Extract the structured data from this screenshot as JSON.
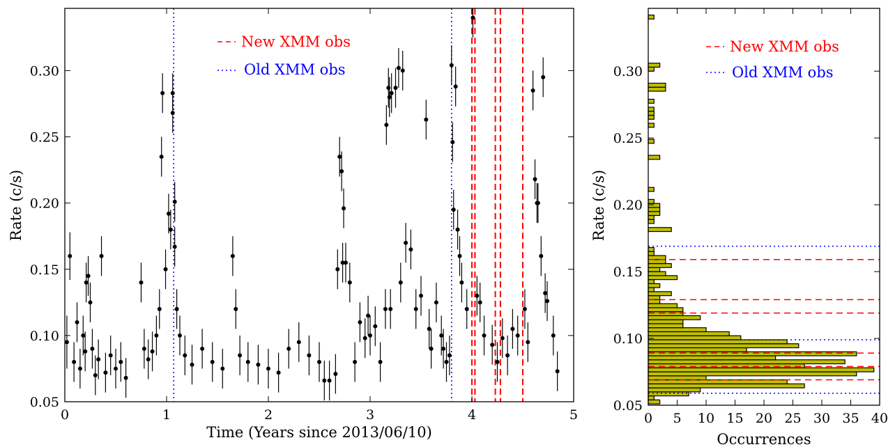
{
  "chart_data": [
    {
      "type": "scatter",
      "xlabel": "Time (Years since 2013/06/10)",
      "ylabel": "Rate (c/s)",
      "xlim": [
        0,
        5
      ],
      "ylim": [
        0.05,
        0.347
      ],
      "xticks": [
        "0",
        "1",
        "2",
        "3",
        "4",
        "5"
      ],
      "yticks": [
        "0.05",
        "0.10",
        "0.15",
        "0.20",
        "0.25",
        "0.30"
      ],
      "legend": [
        {
          "label": "New XMM obs",
          "line": "dashed",
          "color": "#ff0000"
        },
        {
          "label": "Old XMM obs",
          "line": "dotted",
          "color": "#0000ff"
        }
      ],
      "legend_text": {
        "new": "New XMM obs",
        "old": "Old XMM obs"
      },
      "new_xmm_obs_times": [
        4.0,
        4.03,
        4.23,
        4.28,
        4.5
      ],
      "old_xmm_obs_times": [
        1.07,
        3.8
      ],
      "points": [
        [
          0.02,
          0.095,
          0.02
        ],
        [
          0.05,
          0.16,
          0.018
        ],
        [
          0.09,
          0.08,
          0.015
        ],
        [
          0.12,
          0.11,
          0.015
        ],
        [
          0.15,
          0.075,
          0.015
        ],
        [
          0.18,
          0.1,
          0.015
        ],
        [
          0.2,
          0.088,
          0.015
        ],
        [
          0.21,
          0.14,
          0.015
        ],
        [
          0.23,
          0.145,
          0.015
        ],
        [
          0.25,
          0.125,
          0.015
        ],
        [
          0.27,
          0.09,
          0.015
        ],
        [
          0.3,
          0.07,
          0.015
        ],
        [
          0.33,
          0.082,
          0.015
        ],
        [
          0.36,
          0.16,
          0.015
        ],
        [
          0.4,
          0.072,
          0.015
        ],
        [
          0.45,
          0.085,
          0.015
        ],
        [
          0.5,
          0.075,
          0.015
        ],
        [
          0.55,
          0.08,
          0.015
        ],
        [
          0.6,
          0.068,
          0.015
        ],
        [
          0.75,
          0.14,
          0.015
        ],
        [
          0.78,
          0.09,
          0.015
        ],
        [
          0.82,
          0.082,
          0.015
        ],
        [
          0.86,
          0.088,
          0.015
        ],
        [
          0.9,
          0.1,
          0.015
        ],
        [
          0.93,
          0.12,
          0.015
        ],
        [
          0.95,
          0.235,
          0.015
        ],
        [
          0.96,
          0.283,
          0.015
        ],
        [
          0.99,
          0.15,
          0.015
        ],
        [
          1.02,
          0.192,
          0.015
        ],
        [
          1.04,
          0.18,
          0.015
        ],
        [
          1.06,
          0.283,
          0.015
        ],
        [
          1.06,
          0.268,
          0.015
        ],
        [
          1.08,
          0.201,
          0.015
        ],
        [
          1.08,
          0.167,
          0.015
        ],
        [
          1.1,
          0.12,
          0.015
        ],
        [
          1.13,
          0.1,
          0.015
        ],
        [
          1.18,
          0.085,
          0.015
        ],
        [
          1.25,
          0.078,
          0.015
        ],
        [
          1.35,
          0.09,
          0.015
        ],
        [
          1.45,
          0.08,
          0.015
        ],
        [
          1.55,
          0.075,
          0.015
        ],
        [
          1.65,
          0.16,
          0.015
        ],
        [
          1.68,
          0.12,
          0.015
        ],
        [
          1.72,
          0.085,
          0.015
        ],
        [
          1.8,
          0.08,
          0.015
        ],
        [
          1.9,
          0.078,
          0.015
        ],
        [
          2.0,
          0.075,
          0.015
        ],
        [
          2.1,
          0.072,
          0.015
        ],
        [
          2.2,
          0.09,
          0.015
        ],
        [
          2.3,
          0.095,
          0.015
        ],
        [
          2.4,
          0.085,
          0.015
        ],
        [
          2.5,
          0.08,
          0.015
        ],
        [
          2.55,
          0.066,
          0.015
        ],
        [
          2.6,
          0.066,
          0.015
        ],
        [
          2.66,
          0.071,
          0.015
        ],
        [
          2.68,
          0.15,
          0.015
        ],
        [
          2.7,
          0.235,
          0.015
        ],
        [
          2.72,
          0.224,
          0.015
        ],
        [
          2.73,
          0.155,
          0.015
        ],
        [
          2.74,
          0.196,
          0.015
        ],
        [
          2.76,
          0.155,
          0.015
        ],
        [
          2.8,
          0.14,
          0.015
        ],
        [
          2.85,
          0.08,
          0.015
        ],
        [
          2.9,
          0.11,
          0.015
        ],
        [
          2.95,
          0.098,
          0.015
        ],
        [
          2.98,
          0.115,
          0.015
        ],
        [
          3.0,
          0.1,
          0.015
        ],
        [
          3.05,
          0.107,
          0.015
        ],
        [
          3.1,
          0.08,
          0.015
        ],
        [
          3.15,
          0.12,
          0.015
        ],
        [
          3.16,
          0.259,
          0.015
        ],
        [
          3.18,
          0.287,
          0.015
        ],
        [
          3.19,
          0.28,
          0.015
        ],
        [
          3.2,
          0.12,
          0.015
        ],
        [
          3.21,
          0.283,
          0.015
        ],
        [
          3.25,
          0.287,
          0.015
        ],
        [
          3.28,
          0.302,
          0.015
        ],
        [
          3.3,
          0.14,
          0.015
        ],
        [
          3.32,
          0.3,
          0.015
        ],
        [
          3.35,
          0.17,
          0.015
        ],
        [
          3.4,
          0.165,
          0.015
        ],
        [
          3.45,
          0.12,
          0.015
        ],
        [
          3.5,
          0.13,
          0.015
        ],
        [
          3.55,
          0.263,
          0.015
        ],
        [
          3.58,
          0.105,
          0.015
        ],
        [
          3.6,
          0.09,
          0.015
        ],
        [
          3.65,
          0.125,
          0.015
        ],
        [
          3.7,
          0.1,
          0.015
        ],
        [
          3.72,
          0.09,
          0.015
        ],
        [
          3.75,
          0.08,
          0.015
        ],
        [
          3.78,
          0.085,
          0.015
        ],
        [
          3.8,
          0.304,
          0.015
        ],
        [
          3.81,
          0.246,
          0.015
        ],
        [
          3.82,
          0.195,
          0.015
        ],
        [
          3.84,
          0.288,
          0.015
        ],
        [
          3.86,
          0.18,
          0.015
        ],
        [
          3.88,
          0.16,
          0.015
        ],
        [
          3.9,
          0.14,
          0.015
        ],
        [
          3.95,
          0.12,
          0.015
        ],
        [
          4.01,
          0.34,
          0.015
        ],
        [
          4.05,
          0.13,
          0.015
        ],
        [
          4.08,
          0.125,
          0.015
        ],
        [
          4.12,
          0.1,
          0.015
        ],
        [
          4.2,
          0.093,
          0.015
        ],
        [
          4.25,
          0.08,
          0.015
        ],
        [
          4.3,
          0.098,
          0.015
        ],
        [
          4.35,
          0.085,
          0.015
        ],
        [
          4.4,
          0.105,
          0.015
        ],
        [
          4.45,
          0.1,
          0.015
        ],
        [
          4.52,
          0.12,
          0.015
        ],
        [
          4.55,
          0.095,
          0.015
        ],
        [
          4.6,
          0.285,
          0.015
        ],
        [
          4.62,
          0.218,
          0.015
        ],
        [
          4.64,
          0.2,
          0.015
        ],
        [
          4.65,
          0.2,
          0.015
        ],
        [
          4.68,
          0.16,
          0.015
        ],
        [
          4.7,
          0.295,
          0.015
        ],
        [
          4.72,
          0.132,
          0.015
        ],
        [
          4.74,
          0.126,
          0.015
        ],
        [
          4.8,
          0.1,
          0.015
        ],
        [
          4.84,
          0.073,
          0.015
        ]
      ]
    },
    {
      "type": "bar",
      "orientation": "horizontal",
      "xlabel": "Occurrences",
      "ylabel": "Rate (c/s)",
      "xlim": [
        0,
        40
      ],
      "ylim": [
        0.05,
        0.347
      ],
      "xticks": [
        "0",
        "5",
        "10",
        "15",
        "20",
        "25",
        "30",
        "35",
        "40"
      ],
      "yticks": [
        "0.05",
        "0.10",
        "0.15",
        "0.20",
        "0.25",
        "0.30"
      ],
      "bar_color": "#bfbf00",
      "legend": [
        {
          "label": "New XMM obs",
          "line": "dashed",
          "color": "#ff0000"
        },
        {
          "label": "Old XMM obs",
          "line": "dotted",
          "color": "#0000ff"
        }
      ],
      "legend_text": {
        "new": "New XMM obs",
        "old": "Old XMM obs"
      },
      "new_xmm_obs_rates": [
        0.069,
        0.079,
        0.089,
        0.119,
        0.129,
        0.159
      ],
      "old_xmm_obs_rates": [
        0.059,
        0.099,
        0.169
      ],
      "bin_width": 0.003,
      "bins": [
        [
          0.051,
          2
        ],
        [
          0.054,
          1
        ],
        [
          0.057,
          7
        ],
        [
          0.06,
          9
        ],
        [
          0.063,
          27
        ],
        [
          0.066,
          24
        ],
        [
          0.069,
          10
        ],
        [
          0.072,
          36
        ],
        [
          0.075,
          39
        ],
        [
          0.078,
          27
        ],
        [
          0.081,
          34
        ],
        [
          0.084,
          22
        ],
        [
          0.087,
          36
        ],
        [
          0.09,
          17
        ],
        [
          0.093,
          26
        ],
        [
          0.096,
          24
        ],
        [
          0.099,
          16
        ],
        [
          0.102,
          14
        ],
        [
          0.105,
          10
        ],
        [
          0.108,
          6
        ],
        [
          0.111,
          6
        ],
        [
          0.114,
          9
        ],
        [
          0.117,
          6
        ],
        [
          0.12,
          6
        ],
        [
          0.123,
          5
        ],
        [
          0.126,
          2
        ],
        [
          0.129,
          2
        ],
        [
          0.132,
          4
        ],
        [
          0.135,
          1
        ],
        [
          0.138,
          2
        ],
        [
          0.141,
          1
        ],
        [
          0.144,
          5
        ],
        [
          0.147,
          3
        ],
        [
          0.15,
          2
        ],
        [
          0.153,
          4
        ],
        [
          0.156,
          3
        ],
        [
          0.159,
          3
        ],
        [
          0.162,
          1
        ],
        [
          0.165,
          1
        ],
        [
          0.18,
          4
        ],
        [
          0.186,
          1
        ],
        [
          0.189,
          1
        ],
        [
          0.192,
          2
        ],
        [
          0.195,
          2
        ],
        [
          0.198,
          2
        ],
        [
          0.201,
          1
        ],
        [
          0.21,
          1
        ],
        [
          0.234,
          2
        ],
        [
          0.246,
          1
        ],
        [
          0.258,
          1
        ],
        [
          0.264,
          1
        ],
        [
          0.267,
          1
        ],
        [
          0.27,
          1
        ],
        [
          0.276,
          1
        ],
        [
          0.285,
          3
        ],
        [
          0.288,
          3
        ],
        [
          0.3,
          1
        ],
        [
          0.303,
          2
        ],
        [
          0.339,
          1
        ]
      ]
    }
  ]
}
